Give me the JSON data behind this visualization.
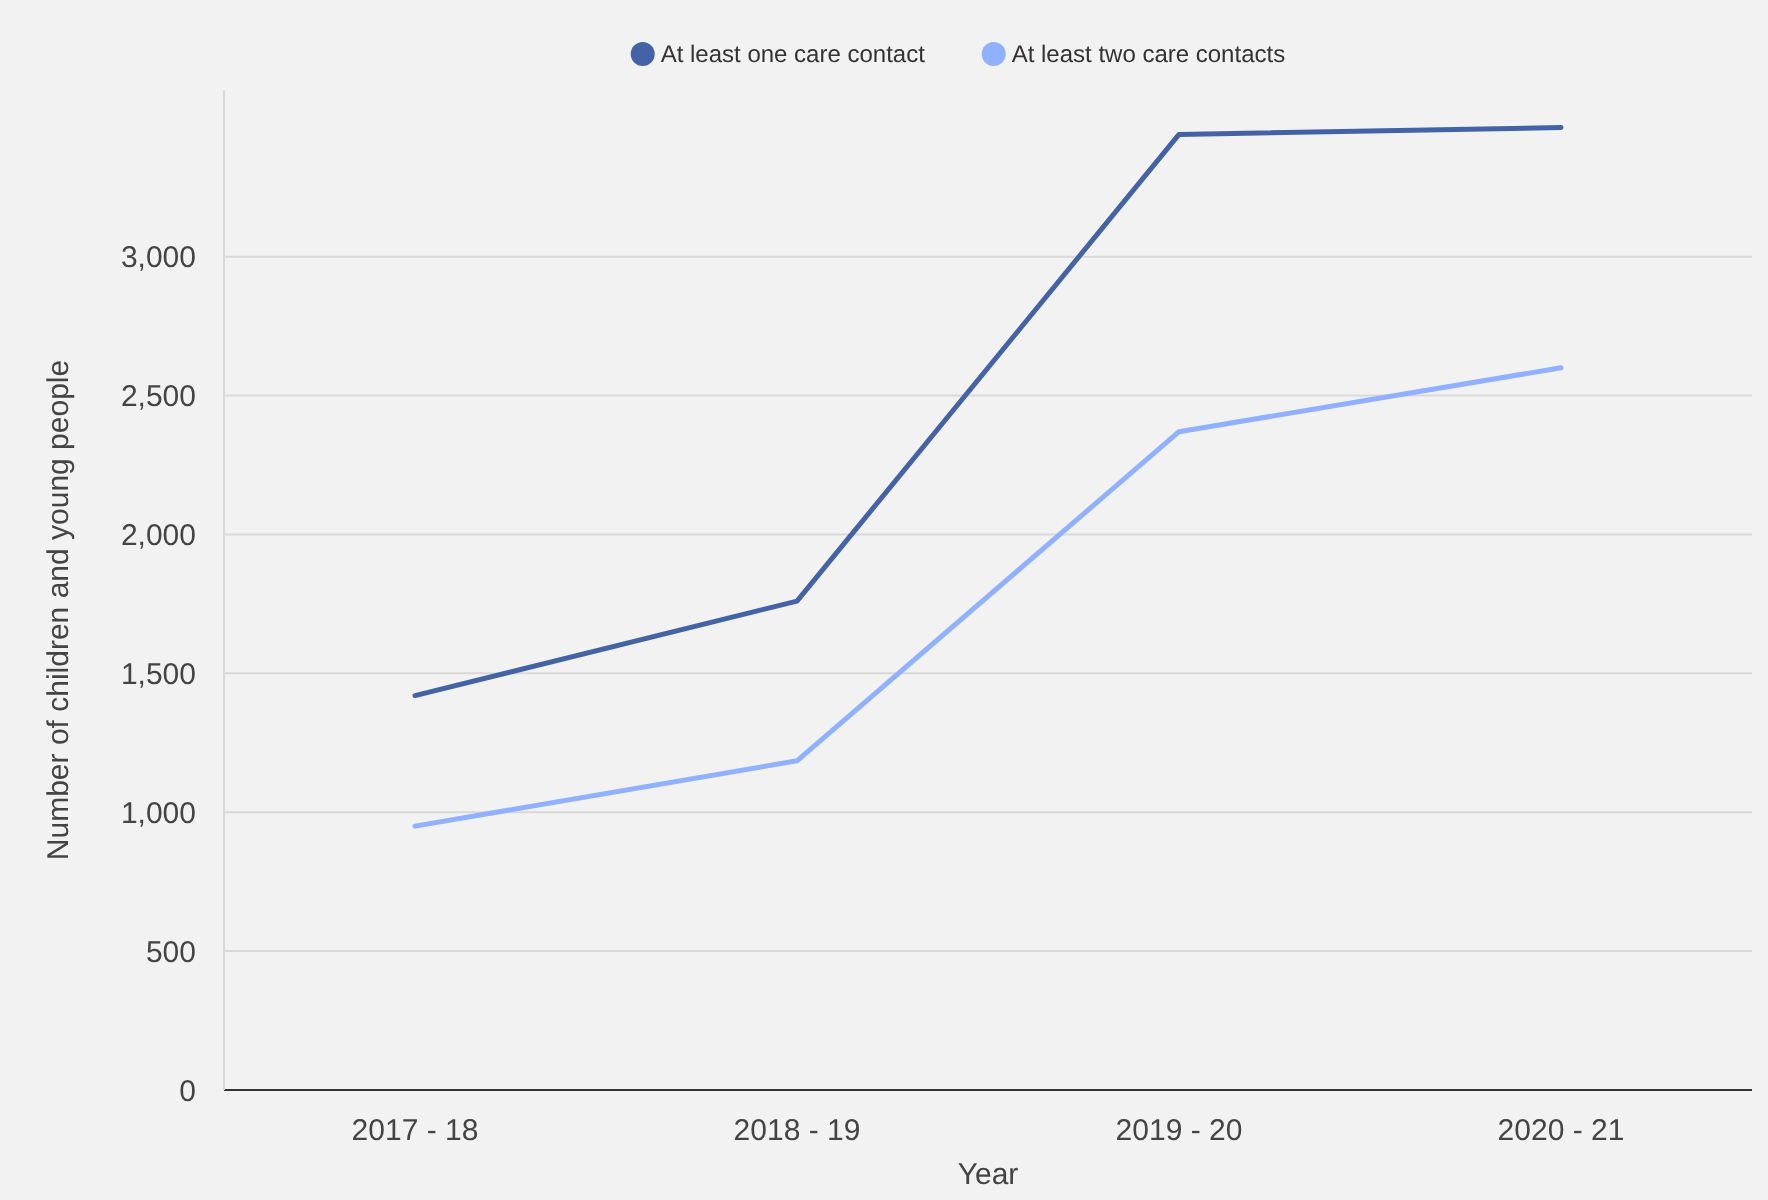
{
  "chart_data": {
    "type": "line",
    "xlabel": "Year",
    "ylabel": "Number of children and young people",
    "categories": [
      "2017 - 18",
      "2018 - 19",
      "2019 - 20",
      "2020 - 21"
    ],
    "series": [
      {
        "name": "At least one care contact",
        "color": "#4463a6",
        "values": [
          1420,
          1760,
          3440,
          3465
        ]
      },
      {
        "name": "At least two care contacts",
        "color": "#8fb1ff",
        "values": [
          950,
          1185,
          2370,
          2600
        ]
      }
    ],
    "ylim": [
      0,
      3600
    ],
    "yticks": [
      {
        "value": 0,
        "label": "0"
      },
      {
        "value": 500,
        "label": "500"
      },
      {
        "value": 1000,
        "label": "1,000"
      },
      {
        "value": 1500,
        "label": "1,500"
      },
      {
        "value": 2000,
        "label": "2,000"
      },
      {
        "value": 2500,
        "label": "2,500"
      },
      {
        "value": 3000,
        "label": "3,000"
      }
    ],
    "grid": "y",
    "legend": "top",
    "marker": "none",
    "line_style": "solid"
  }
}
